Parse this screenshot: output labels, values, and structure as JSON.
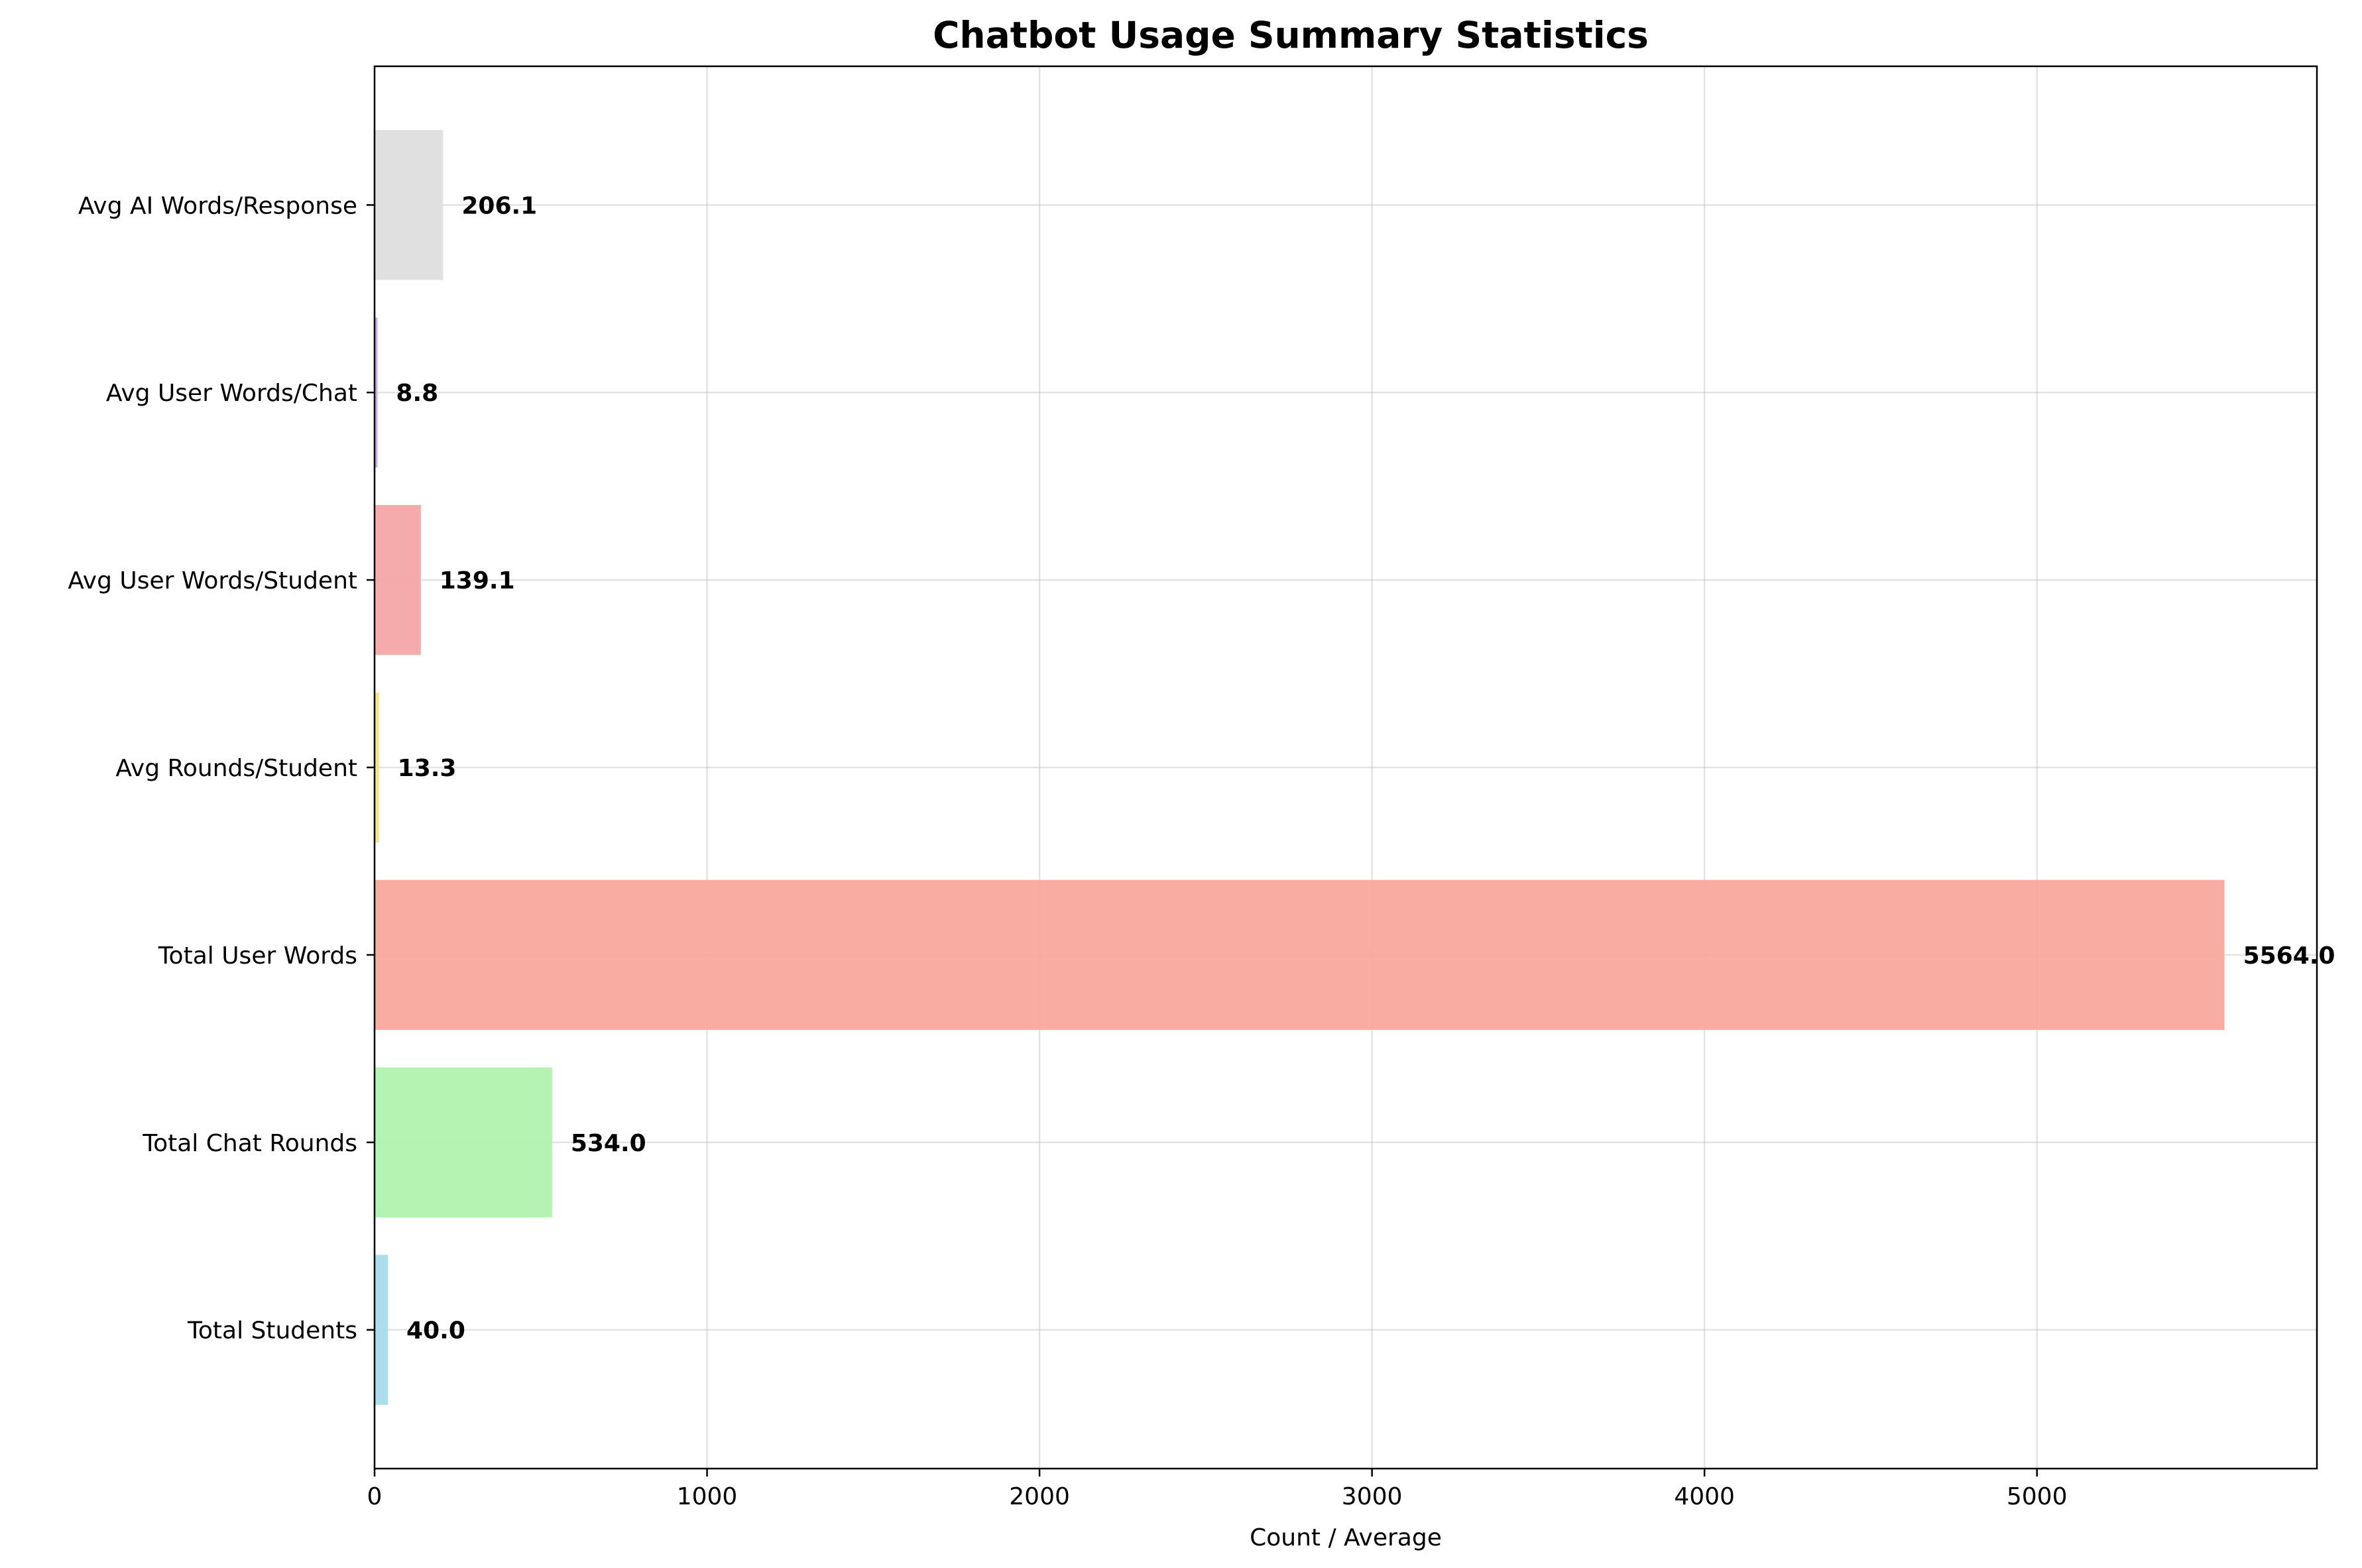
{
  "chart_data": {
    "type": "bar",
    "orientation": "horizontal",
    "title": "Chatbot Usage Summary Statistics",
    "xlabel": "Count / Average",
    "ylabel": "",
    "xlim": [
      0,
      5842
    ],
    "xticks": [
      0,
      1000,
      2000,
      3000,
      4000,
      5000
    ],
    "grid": true,
    "categories": [
      "Total Students",
      "Total Chat Rounds",
      "Total User Words",
      "Avg Rounds/Student",
      "Avg User Words/Student",
      "Avg User Words/Chat",
      "Avg AI Words/Response"
    ],
    "values": [
      40.0,
      534.0,
      5564.0,
      13.3,
      139.1,
      8.8,
      206.1
    ],
    "value_labels": [
      "40.0",
      "534.0",
      "5564.0",
      "13.3",
      "139.1",
      "8.8",
      "206.1"
    ],
    "colors": [
      "#a6dcec",
      "#b0f2ae",
      "#f9a89d",
      "#f5e27a",
      "#f4a6a6",
      "#c5a8e3",
      "#dedede"
    ]
  }
}
